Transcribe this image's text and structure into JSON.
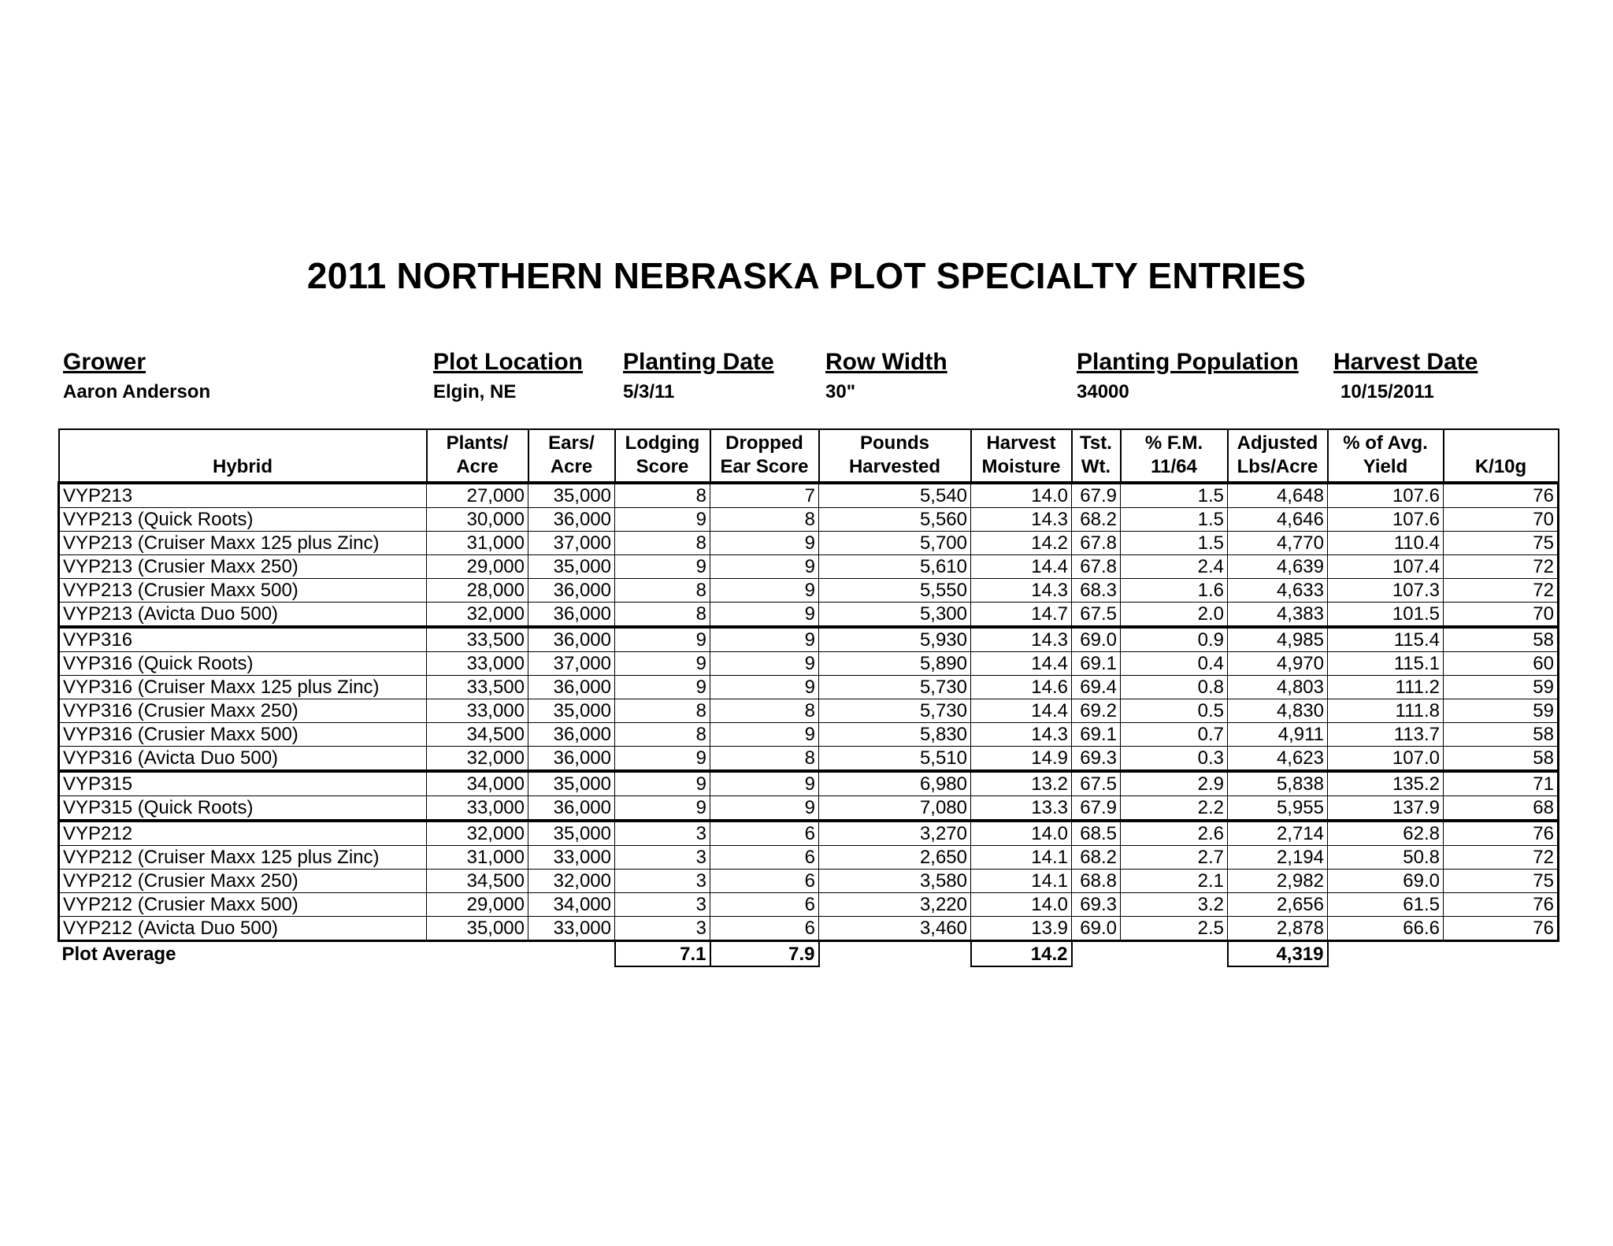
{
  "title": "2011 NORTHERN NEBRASKA PLOT SPECIALTY ENTRIES",
  "header": {
    "grower": {
      "label": "Grower",
      "value": "Aaron Anderson"
    },
    "plot_location": {
      "label": "Plot Location",
      "value": "Elgin, NE"
    },
    "planting_date": {
      "label": "Planting Date",
      "value": "5/3/11"
    },
    "row_width": {
      "label": "Row Width",
      "value": "30\""
    },
    "planting_population": {
      "label": "Planting Population",
      "value": "34000"
    },
    "harvest_date": {
      "label": "Harvest Date",
      "value": "10/15/2011"
    }
  },
  "columns": [
    {
      "l1": "",
      "l2": "Hybrid"
    },
    {
      "l1": "Plants/",
      "l2": "Acre"
    },
    {
      "l1": "Ears/",
      "l2": "Acre"
    },
    {
      "l1": "Lodging",
      "l2": "Score"
    },
    {
      "l1": "Dropped",
      "l2": "Ear Score"
    },
    {
      "l1": "Pounds",
      "l2": "Harvested"
    },
    {
      "l1": "Harvest",
      "l2": "Moisture"
    },
    {
      "l1": "Tst.",
      "l2": "Wt."
    },
    {
      "l1": "% F.M.",
      "l2": "11/64"
    },
    {
      "l1": "Adjusted",
      "l2": "Lbs/Acre"
    },
    {
      "l1": "% of Avg.",
      "l2": "Yield"
    },
    {
      "l1": "",
      "l2": "K/10g"
    }
  ],
  "groups": [
    [
      [
        "VYP213",
        "27,000",
        "35,000",
        "8",
        "7",
        "5,540",
        "14.0",
        "67.9",
        "1.5",
        "4,648",
        "107.6",
        "76"
      ],
      [
        "VYP213 (Quick Roots)",
        "30,000",
        "36,000",
        "9",
        "8",
        "5,560",
        "14.3",
        "68.2",
        "1.5",
        "4,646",
        "107.6",
        "70"
      ],
      [
        "VYP213 (Cruiser Maxx 125 plus Zinc)",
        "31,000",
        "37,000",
        "8",
        "9",
        "5,700",
        "14.2",
        "67.8",
        "1.5",
        "4,770",
        "110.4",
        "75"
      ],
      [
        "VYP213 (Crusier Maxx 250)",
        "29,000",
        "35,000",
        "9",
        "9",
        "5,610",
        "14.4",
        "67.8",
        "2.4",
        "4,639",
        "107.4",
        "72"
      ],
      [
        "VYP213 (Crusier Maxx 500)",
        "28,000",
        "36,000",
        "8",
        "9",
        "5,550",
        "14.3",
        "68.3",
        "1.6",
        "4,633",
        "107.3",
        "72"
      ],
      [
        "VYP213 (Avicta Duo 500)",
        "32,000",
        "36,000",
        "8",
        "9",
        "5,300",
        "14.7",
        "67.5",
        "2.0",
        "4,383",
        "101.5",
        "70"
      ]
    ],
    [
      [
        "VYP316",
        "33,500",
        "36,000",
        "9",
        "9",
        "5,930",
        "14.3",
        "69.0",
        "0.9",
        "4,985",
        "115.4",
        "58"
      ],
      [
        "VYP316 (Quick Roots)",
        "33,000",
        "37,000",
        "9",
        "9",
        "5,890",
        "14.4",
        "69.1",
        "0.4",
        "4,970",
        "115.1",
        "60"
      ],
      [
        "VYP316 (Cruiser Maxx 125 plus Zinc)",
        "33,500",
        "36,000",
        "9",
        "9",
        "5,730",
        "14.6",
        "69.4",
        "0.8",
        "4,803",
        "111.2",
        "59"
      ],
      [
        "VYP316 (Crusier Maxx 250)",
        "33,000",
        "35,000",
        "8",
        "8",
        "5,730",
        "14.4",
        "69.2",
        "0.5",
        "4,830",
        "111.8",
        "59"
      ],
      [
        "VYP316 (Crusier Maxx 500)",
        "34,500",
        "36,000",
        "8",
        "9",
        "5,830",
        "14.3",
        "69.1",
        "0.7",
        "4,911",
        "113.7",
        "58"
      ],
      [
        "VYP316 (Avicta Duo 500)",
        "32,000",
        "36,000",
        "9",
        "8",
        "5,510",
        "14.9",
        "69.3",
        "0.3",
        "4,623",
        "107.0",
        "58"
      ]
    ],
    [
      [
        "VYP315",
        "34,000",
        "35,000",
        "9",
        "9",
        "6,980",
        "13.2",
        "67.5",
        "2.9",
        "5,838",
        "135.2",
        "71"
      ],
      [
        "VYP315 (Quick Roots)",
        "33,000",
        "36,000",
        "9",
        "9",
        "7,080",
        "13.3",
        "67.9",
        "2.2",
        "5,955",
        "137.9",
        "68"
      ]
    ],
    [
      [
        "VYP212",
        "32,000",
        "35,000",
        "3",
        "6",
        "3,270",
        "14.0",
        "68.5",
        "2.6",
        "2,714",
        "62.8",
        "76"
      ],
      [
        "VYP212 (Cruiser Maxx 125 plus Zinc)",
        "31,000",
        "33,000",
        "3",
        "6",
        "2,650",
        "14.1",
        "68.2",
        "2.7",
        "2,194",
        "50.8",
        "72"
      ],
      [
        "VYP212 (Crusier Maxx 250)",
        "34,500",
        "32,000",
        "3",
        "6",
        "3,580",
        "14.1",
        "68.8",
        "2.1",
        "2,982",
        "69.0",
        "75"
      ],
      [
        "VYP212 (Crusier Maxx 500)",
        "29,000",
        "34,000",
        "3",
        "6",
        "3,220",
        "14.0",
        "69.3",
        "3.2",
        "2,656",
        "61.5",
        "76"
      ],
      [
        "VYP212 (Avicta Duo 500)",
        "35,000",
        "33,000",
        "3",
        "6",
        "3,460",
        "13.9",
        "69.0",
        "2.5",
        "2,878",
        "66.6",
        "76"
      ]
    ]
  ],
  "plot_average": {
    "label": "Plot Average",
    "lodging_score": "7.1",
    "dropped_ear_score": "7.9",
    "harvest_moisture": "14.2",
    "adjusted_lbs_acre": "4,319"
  }
}
